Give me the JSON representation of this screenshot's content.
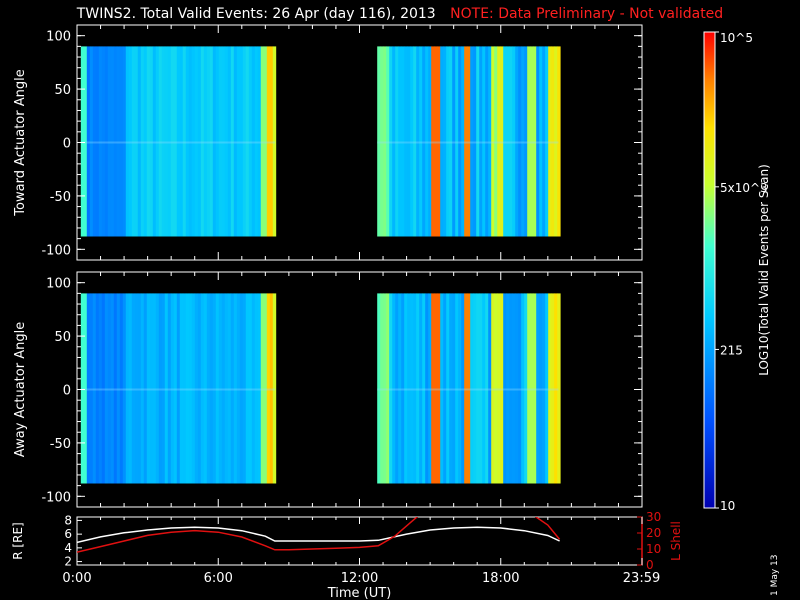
{
  "header": {
    "title": "TWINS2. Total Valid Events: 26 Apr (day 116), 2013",
    "note": "NOTE: Data Preliminary - Not validated"
  },
  "colorbar": {
    "label": "LOG10(Total Valid Events per Scan)",
    "ticks": [
      "10",
      "215",
      "5x10^3",
      "10^5"
    ],
    "tick_values": [
      10,
      215,
      5000,
      100000
    ]
  },
  "footer": {
    "datestamp": "1 May 13"
  },
  "colors": {
    "background": "#000000",
    "axes": "#ffffff",
    "note": "#ff2020",
    "r_line": "#ffffff",
    "lshell_line": "#e01010"
  },
  "chart_data": [
    {
      "type": "heatmap",
      "ylabel": "Toward Actuator Angle",
      "ylim": [
        -110,
        110
      ],
      "yticks": [
        "100",
        "50",
        "0",
        "-50",
        "-100"
      ],
      "ytick_values": [
        100,
        50,
        0,
        -50,
        -100
      ],
      "xlim": [
        0,
        24
      ],
      "x_range_hours": [
        0,
        24
      ],
      "data_blocks": [
        {
          "x_start": 0.16,
          "x_end": 8.42,
          "y_range": [
            -88,
            90
          ]
        },
        {
          "x_start": 12.75,
          "x_end": 20.45,
          "y_range": [
            -88,
            90
          ]
        }
      ],
      "notable_features": [
        "near-saturated (yellow-red) columns around 8.0-8.4 UT",
        "red/orange columns near 15.2 and 16.5 UT"
      ]
    },
    {
      "type": "heatmap",
      "ylabel": "Away Actuator Angle",
      "ylim": [
        -110,
        110
      ],
      "yticks": [
        "100",
        "50",
        "0",
        "-50",
        "-100"
      ],
      "ytick_values": [
        100,
        50,
        0,
        -50,
        -100
      ],
      "xlim": [
        0,
        24
      ],
      "data_blocks": [
        {
          "x_start": 0.16,
          "x_end": 8.42,
          "y_range": [
            -88,
            90
          ]
        },
        {
          "x_start": 12.75,
          "x_end": 20.45,
          "y_range": [
            -88,
            90
          ]
        }
      ]
    },
    {
      "type": "line",
      "xlabel": "Time (UT)",
      "xticks": [
        "0:00",
        "6:00",
        "12:00",
        "18:00",
        "23:59"
      ],
      "xtick_values": [
        0,
        6,
        12,
        18,
        23.98
      ],
      "left_axis": {
        "label": "R [RE]",
        "ticks": [
          "2",
          "4",
          "6",
          "8"
        ],
        "tick_values": [
          2,
          4,
          6,
          8
        ],
        "ylim": [
          1.5,
          8.5
        ]
      },
      "right_axis": {
        "label": "L Shell",
        "ticks": [
          "0",
          "10",
          "20",
          "30"
        ],
        "tick_values": [
          0,
          10,
          20,
          30
        ],
        "ylim": [
          0,
          30
        ]
      },
      "series": [
        {
          "name": "R [RE]",
          "axis": "left",
          "x": [
            0,
            1,
            2,
            3,
            4,
            5,
            6,
            7,
            8,
            8.4,
            9,
            10,
            11,
            12,
            12.8,
            14,
            15,
            16,
            17,
            18,
            19,
            20,
            20.5
          ],
          "y": [
            4.8,
            5.6,
            6.2,
            6.6,
            6.9,
            7.0,
            6.9,
            6.5,
            5.7,
            5.0,
            5.0,
            5.0,
            5.0,
            5.0,
            5.1,
            6.0,
            6.6,
            6.9,
            7.0,
            6.9,
            6.5,
            5.8,
            5.0
          ]
        },
        {
          "name": "L Shell",
          "axis": "right",
          "x": [
            0,
            1,
            2,
            3,
            4,
            5,
            6,
            7,
            8,
            8.4,
            9,
            10,
            11,
            12,
            12.8,
            13.5,
            14.2,
            14.6,
            19.3,
            20,
            20.5
          ],
          "y": [
            8.0,
            11.5,
            15.0,
            18.5,
            20.5,
            21.5,
            20.5,
            17.5,
            12.0,
            9.5,
            9.5,
            10.0,
            10.5,
            11.0,
            12.0,
            18.0,
            27.0,
            32.0,
            32.0,
            25.0,
            16.0
          ]
        }
      ]
    }
  ]
}
